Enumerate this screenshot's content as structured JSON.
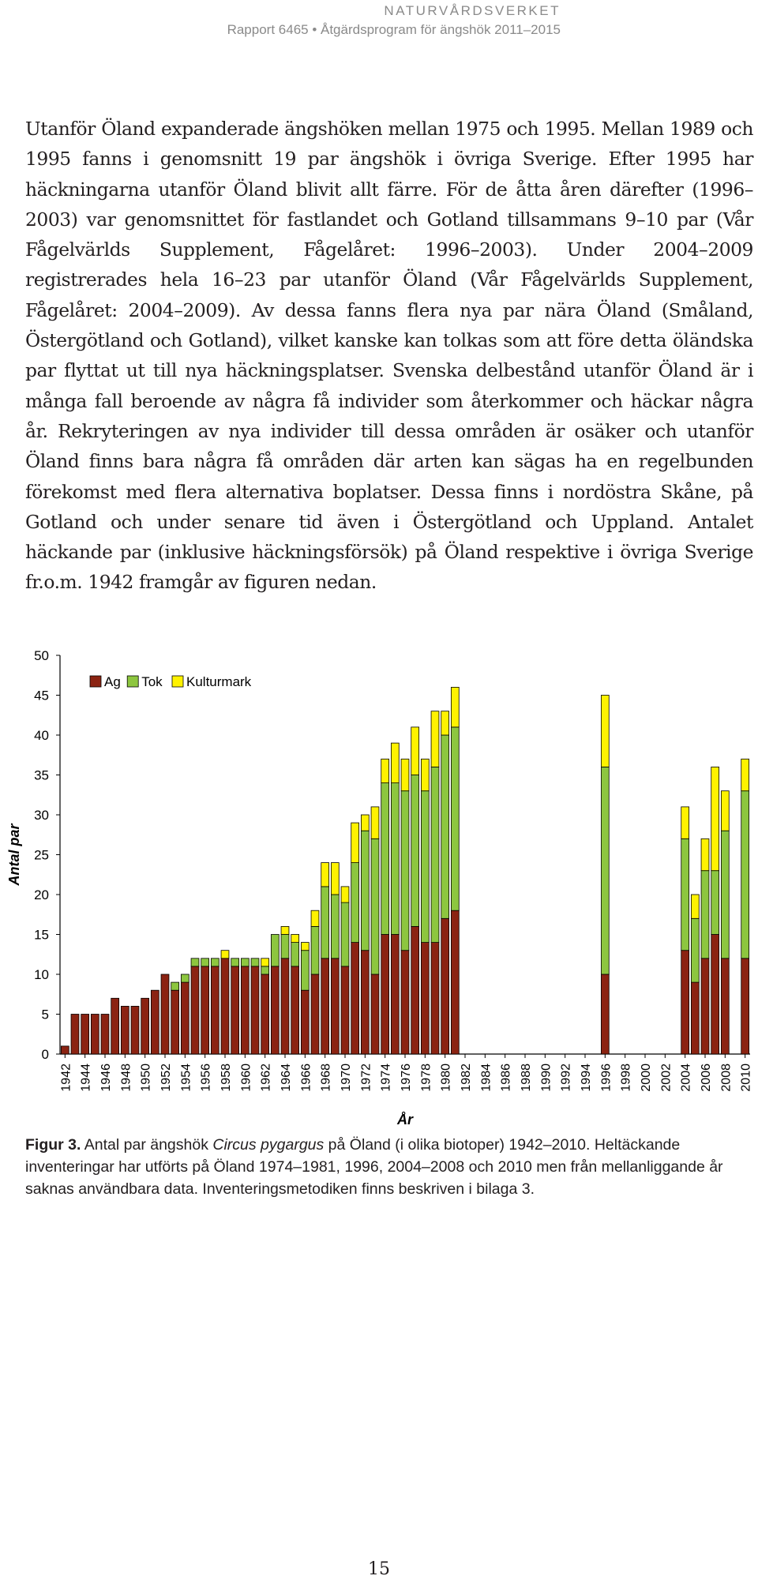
{
  "header": {
    "org": "NATURVÅRDSVERKET",
    "report": "Rapport 6465 • Åtgärdsprogram för ängshök 2011–2015"
  },
  "body": {
    "paragraph": "Utanför Öland expanderade ängshöken mellan 1975 och 1995. Mellan 1989 och 1995 fanns i genomsnitt 19 par ängshök i övriga Sverige. Efter 1995 har häckningarna utanför Öland blivit allt färre. För de åtta åren därefter (1996–2003) var genomsnittet för fastlandet och Gotland tillsammans 9–10 par (Vår Fågelvärlds Supplement, Fågelåret: 1996–2003). Under 2004–2009 registrerades hela 16–23 par utanför Öland (Vår Fågelvärlds Supplement, Fågelåret: 2004–2009). Av dessa fanns flera nya par nära Öland (Småland, Östergötland och Gotland), vilket kanske kan tolkas som att före detta öländska par flyttat ut till nya häckningsplatser. Svenska delbestånd utanför Öland är i många fall beroende av några få individer som återkommer och häckar några år. Rekryteringen av nya individer till dessa områden är osäker och utanför Öland finns bara några få områden där arten kan sägas ha en regelbunden förekomst med flera alternativa boplatser. Dessa finns i nordöstra Skåne, på Gotland och under senare tid även i Östergötland och Uppland. Antalet häckande par (inklusive häckningsförsök) på Öland respektive i övriga Sverige fr.o.m. 1942 framgår av figuren nedan."
  },
  "chart_data": {
    "type": "bar",
    "stacked": true,
    "xlabel": "År",
    "ylabel": "Antal par",
    "ylim": [
      0,
      50
    ],
    "yticks": [
      0,
      5,
      10,
      15,
      20,
      25,
      30,
      35,
      40,
      45,
      50
    ],
    "legend_position": "top-left",
    "categories": [
      "1942",
      "1943",
      "1944",
      "1945",
      "1946",
      "1947",
      "1948",
      "1949",
      "1950",
      "1951",
      "1952",
      "1953",
      "1954",
      "1955",
      "1956",
      "1957",
      "1958",
      "1959",
      "1960",
      "1961",
      "1962",
      "1963",
      "1964",
      "1965",
      "1966",
      "1967",
      "1968",
      "1969",
      "1970",
      "1971",
      "1972",
      "1973",
      "1974",
      "1975",
      "1976",
      "1977",
      "1978",
      "1979",
      "1980",
      "1981",
      "1982",
      "1983",
      "1984",
      "1985",
      "1986",
      "1987",
      "1988",
      "1989",
      "1990",
      "1991",
      "1992",
      "1993",
      "1994",
      "1995",
      "1996",
      "1997",
      "1998",
      "1999",
      "2000",
      "2001",
      "2002",
      "2003",
      "2004",
      "2005",
      "2006",
      "2007",
      "2008",
      "2009",
      "2010"
    ],
    "series": [
      {
        "name": "Ag",
        "color": "#8b2312",
        "values": [
          1,
          5,
          5,
          5,
          5,
          7,
          6,
          6,
          7,
          8,
          10,
          8,
          9,
          11,
          11,
          11,
          12,
          11,
          11,
          11,
          10,
          11,
          12,
          11,
          8,
          10,
          12,
          12,
          11,
          14,
          13,
          10,
          15,
          15,
          13,
          16,
          14,
          14,
          17,
          18,
          null,
          null,
          null,
          null,
          null,
          null,
          null,
          null,
          null,
          null,
          null,
          null,
          null,
          null,
          10,
          null,
          null,
          null,
          null,
          null,
          null,
          null,
          13,
          9,
          12,
          15,
          12,
          null,
          12
        ]
      },
      {
        "name": "Tok",
        "color": "#8dc63f",
        "values": [
          0,
          0,
          0,
          0,
          0,
          0,
          0,
          0,
          0,
          0,
          0,
          1,
          1,
          1,
          1,
          1,
          0,
          1,
          1,
          1,
          1,
          4,
          3,
          3,
          5,
          6,
          9,
          8,
          8,
          10,
          15,
          17,
          19,
          19,
          20,
          19,
          19,
          22,
          23,
          23,
          null,
          null,
          null,
          null,
          null,
          null,
          null,
          null,
          null,
          null,
          null,
          null,
          null,
          null,
          26,
          null,
          null,
          null,
          null,
          null,
          null,
          null,
          14,
          8,
          11,
          8,
          16,
          null,
          21
        ]
      },
      {
        "name": "Kulturmark",
        "color": "#fff200",
        "values": [
          0,
          0,
          0,
          0,
          0,
          0,
          0,
          0,
          0,
          0,
          0,
          0,
          0,
          0,
          0,
          0,
          1,
          0,
          0,
          0,
          1,
          0,
          1,
          1,
          1,
          2,
          3,
          4,
          2,
          5,
          2,
          4,
          3,
          5,
          4,
          6,
          4,
          7,
          3,
          5,
          null,
          null,
          null,
          null,
          null,
          null,
          null,
          null,
          null,
          null,
          null,
          null,
          null,
          null,
          9,
          null,
          null,
          null,
          null,
          null,
          null,
          null,
          4,
          3,
          4,
          13,
          5,
          null,
          4
        ]
      }
    ]
  },
  "caption": {
    "label": "Figur 3.",
    "text_before": " Antal par ängshök ",
    "species": "Circus pygargus",
    "text_after": " på Öland (i olika biotoper) 1942–2010. Heltäckande inventeringar har utförts på Öland 1974–1981, 1996, 2004–2008 och 2010 men från mellanliggande år saknas användbara data. Inventeringsmetodiken finns beskriven i bilaga 3."
  },
  "footer": {
    "page_number": "15"
  }
}
